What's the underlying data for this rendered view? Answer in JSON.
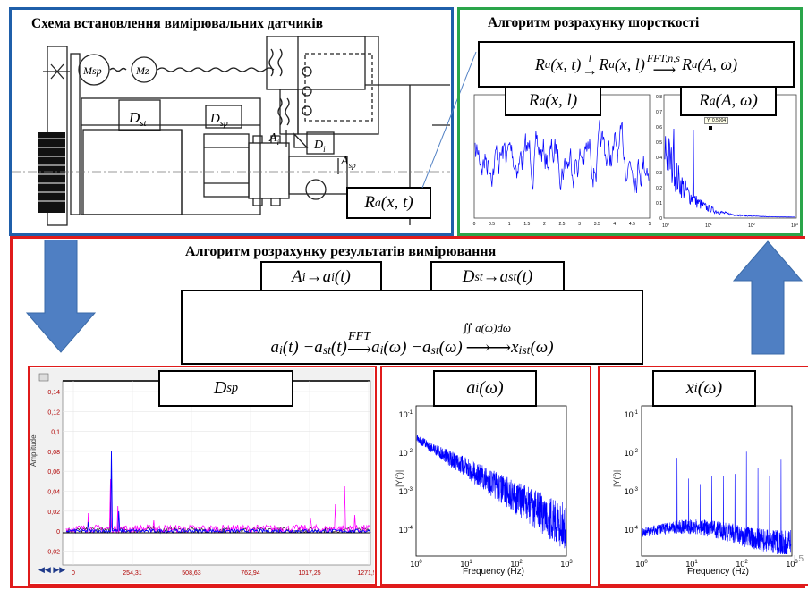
{
  "colors": {
    "blue_border": "#1f5faa",
    "green_border": "#2aa54a",
    "red_border": "#e01b1b",
    "arrow_fill": "#4f7fc3",
    "plot_blue": "#0000ff",
    "plot_magenta": "#ff00ff"
  },
  "scheme": {
    "title": "Схема встановлення  вимірювальних датчиків",
    "labels": {
      "msp": "Msp",
      "mz": "Mz",
      "dst": "D",
      "dst_sub": "st",
      "dsp": "D",
      "dsp_sub": "sp",
      "ai": "A",
      "ai_sub": "i",
      "di": "D",
      "di_sub": "i",
      "asp": "A",
      "asp_sub": "sp"
    },
    "ra_box": {
      "base": "R",
      "sub": "a",
      "args": "(x, t)"
    }
  },
  "roughness": {
    "title": "Алгоритм розрахунку шорсткості",
    "formula": {
      "t1": "R",
      "t1_sub": "a",
      "t1_args": "(x, t)",
      "arrow1_over": "l",
      "t2": "R",
      "t2_sub": "a",
      "t2_args": "(x, l)",
      "arrow2_over": "FFT,n,s",
      "t3": "R",
      "t3_sub": "a",
      "t3_args": "(A, ω)"
    },
    "plot1_label": {
      "base": "R",
      "sub": "a",
      "args": "(x, l)"
    },
    "plot2_label": {
      "base": "R",
      "sub": "a",
      "args": "(A, ω)"
    },
    "plot1_yticks": [
      "",
      "",
      "",
      "",
      ""
    ],
    "plot1_xticks": [
      "0",
      "0.5",
      "1",
      "1.5",
      "2",
      "2.5",
      "3",
      "3.5",
      "4",
      "4.5",
      "5"
    ],
    "plot2_yticks": [
      "0.8",
      "0.7",
      "0.6",
      "0.5",
      "0.4",
      "0.3",
      "0.2",
      "0.1",
      "0"
    ],
    "plot2_xticks": [
      "10",
      "10",
      "10",
      "10"
    ],
    "plot2_xtick_exps": [
      "0",
      "1",
      "2",
      "3"
    ],
    "datatip": "Y: 0.5904"
  },
  "measurement": {
    "title": "Алгоритм розрахунку результатів вимірювання",
    "box1": {
      "base": "A",
      "sub": "i",
      "arrow": " → ",
      "right": "a",
      "right_sub": "i",
      "right_args": "(t)"
    },
    "box2": {
      "base": "D",
      "sub": "st",
      "arrow": " → ",
      "right": "a",
      "right_sub": "st",
      "right_args": "(t)"
    },
    "main_formula": {
      "p1": "a",
      "p1_sub": "i",
      "p1_args": "(t) − ",
      "p2": "a",
      "p2_sub": "st",
      "p2_args": "(t)",
      "arrow1_over": "FFT",
      "p3": "a",
      "p3_sub": "i",
      "p3_args": "(ω) − ",
      "p4": "a",
      "p4_sub": "st",
      "p4_args": "(ω)",
      "arrow2_over": "∬ a(ω)dω",
      "p5": "x",
      "p5_sub": "ist",
      "p5_args": " (ω)"
    }
  },
  "plot_dsp": {
    "label": {
      "base": "D",
      "sub": "sp"
    },
    "yticks": [
      "0,14",
      "0,12",
      "0,1",
      "0,08",
      "0,06",
      "0,04",
      "0,02",
      "0",
      "-0,02"
    ],
    "xticks": [
      "0",
      "254,31",
      "508,63",
      "762,94",
      "1017,25",
      "1271,57"
    ],
    "ylabel": "Amplitude"
  },
  "plot_ai": {
    "label": {
      "base": "a",
      "sub": "i",
      "args": "(ω)"
    },
    "ylabel": "|Y(f)|",
    "xlabel": "Frequency (Hz)",
    "ytick_exps": [
      "-1",
      "-2",
      "-3",
      "-4"
    ],
    "xtick_exps": [
      "0",
      "1",
      "2",
      "3"
    ]
  },
  "plot_xi": {
    "label": {
      "base": "x",
      "sub": "i",
      "args": "(ω)"
    },
    "ylabel": "|Y(f)|",
    "xlabel": "Frequency (Hz)",
    "ytick_exps": [
      "-1",
      "-2",
      "-3",
      "-4"
    ],
    "xtick_exps": [
      "0",
      "1",
      "2",
      "3"
    ],
    "corner": "L5"
  }
}
